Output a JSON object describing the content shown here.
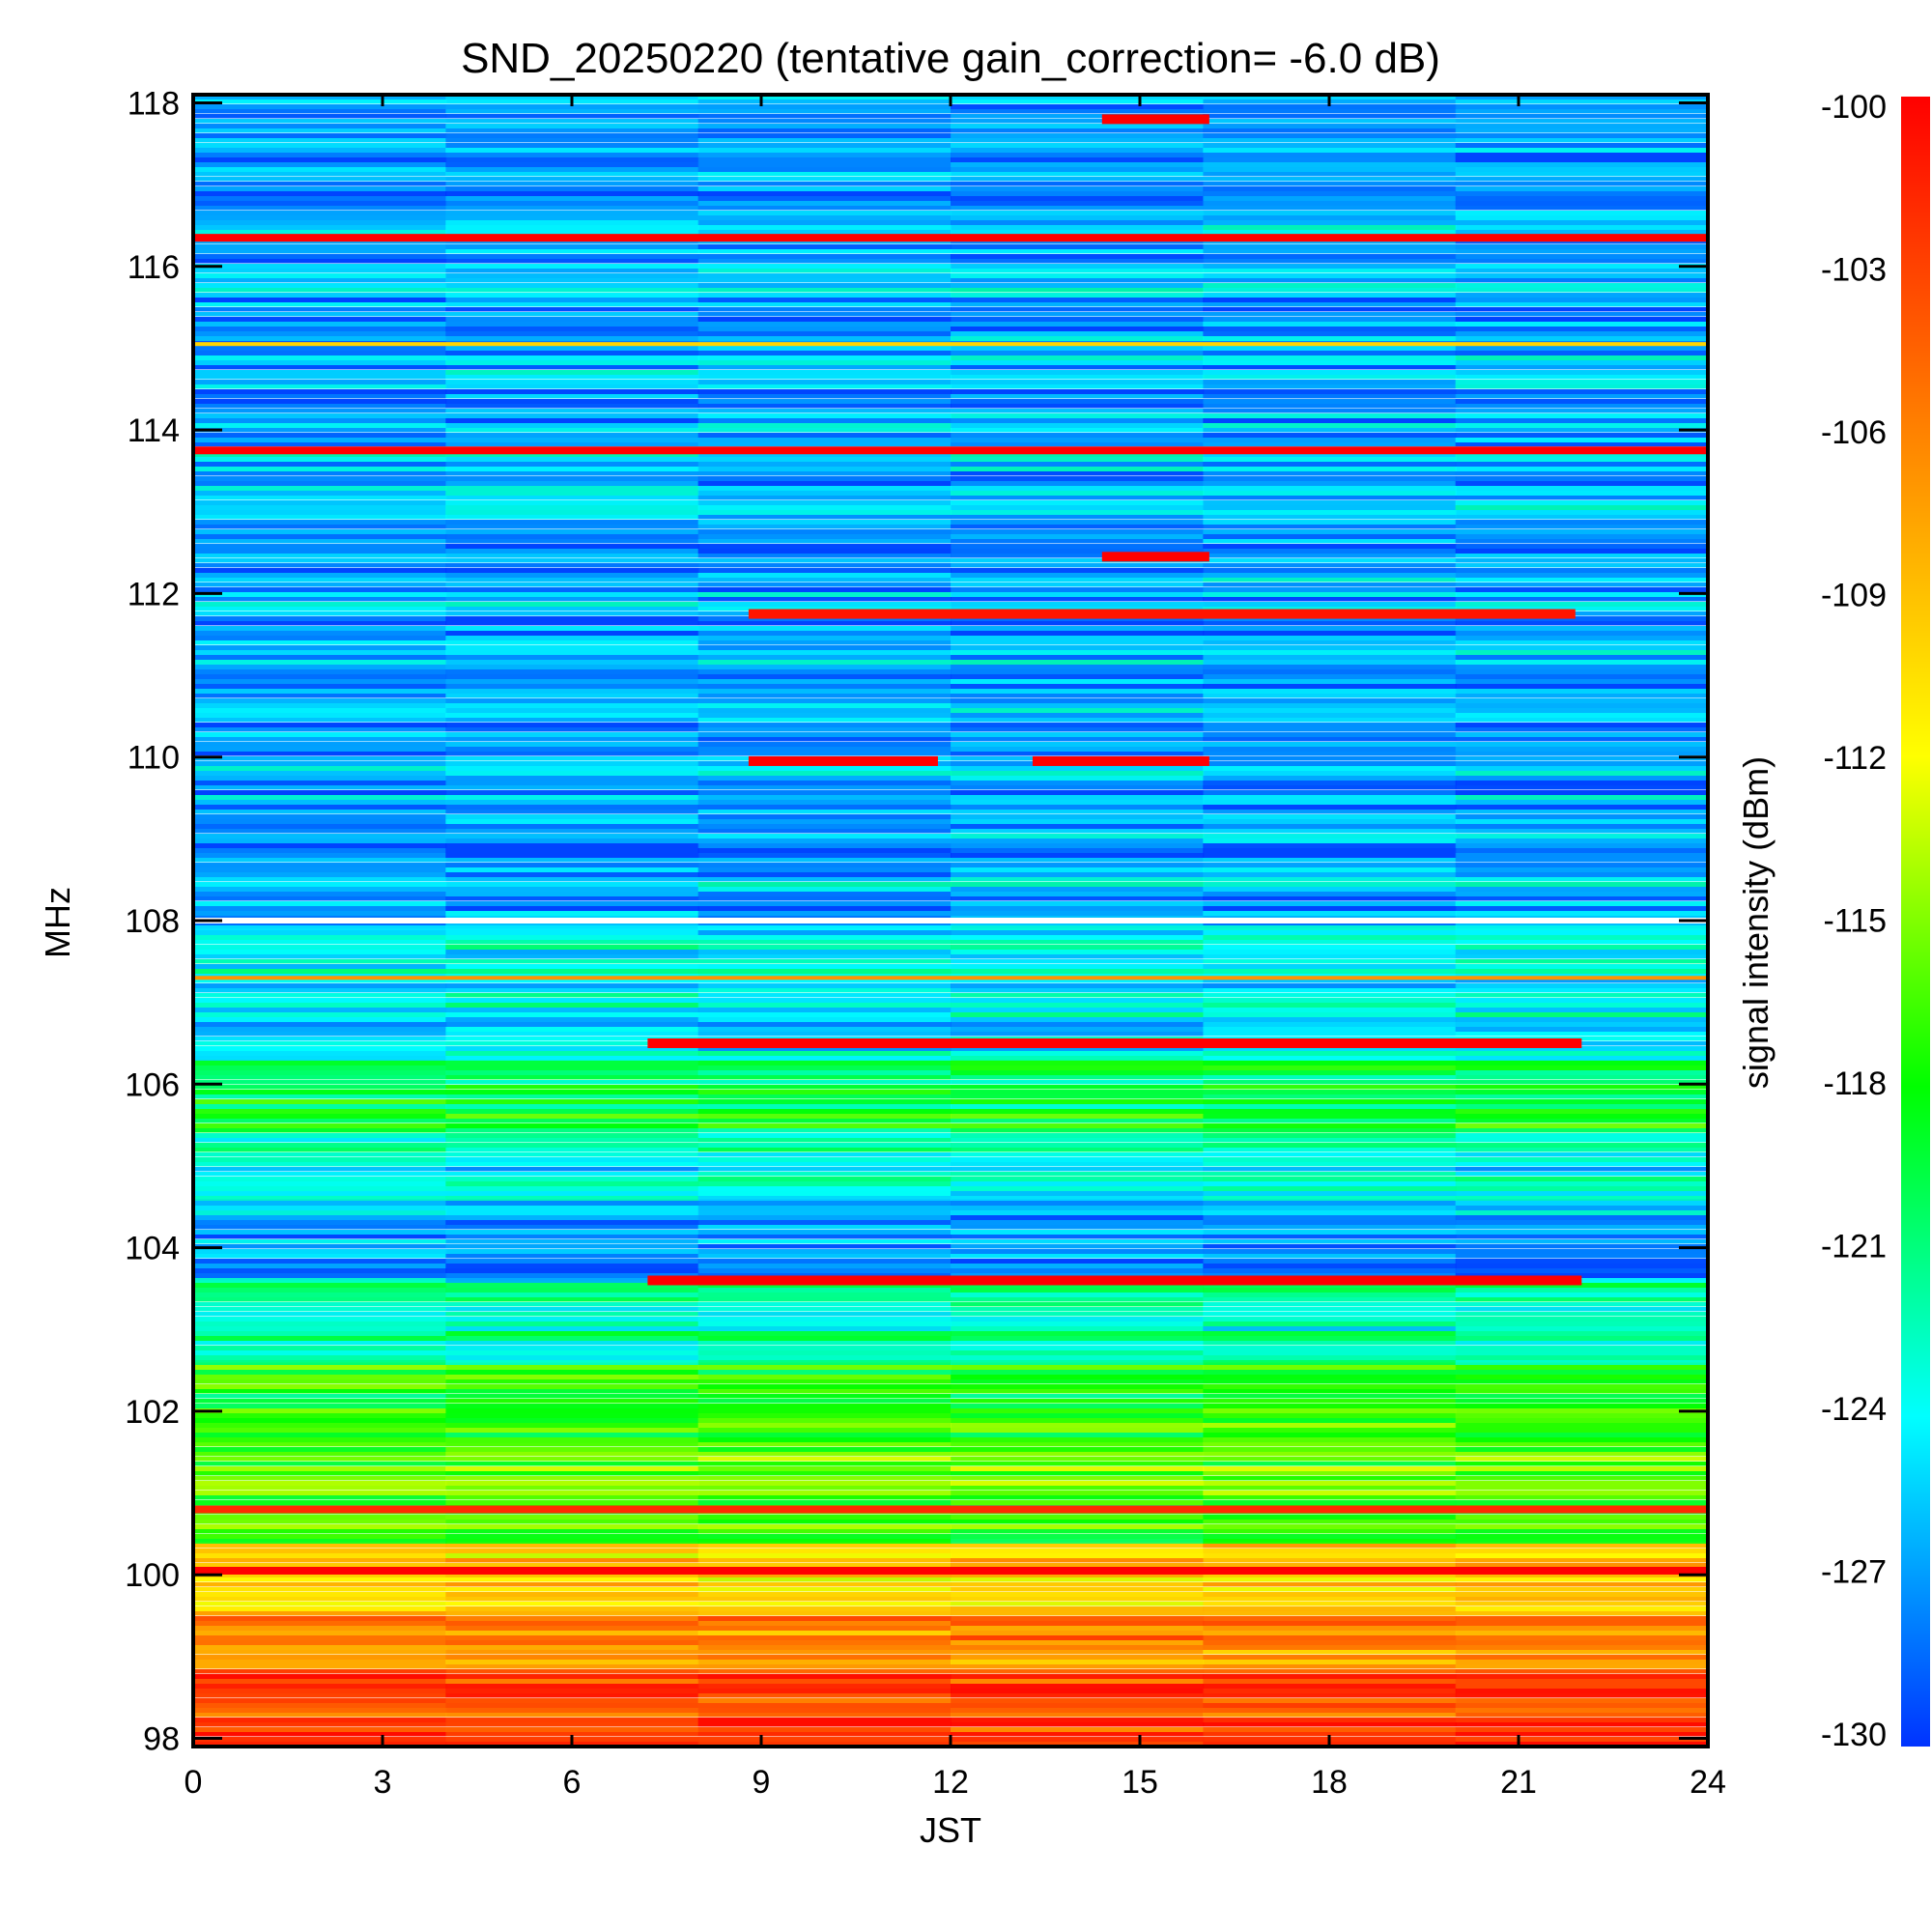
{
  "chart_data": {
    "type": "heatmap",
    "title": "SND_20250220 (tentative gain_correction= -6.0 dB)",
    "xlabel": "JST",
    "ylabel": "MHz",
    "colorbar_label": "signal intensity (dBm)",
    "xlim": [
      0,
      24
    ],
    "ylim": [
      97.9,
      118.1
    ],
    "x_ticks": [
      0,
      3,
      6,
      9,
      12,
      15,
      18,
      21,
      24
    ],
    "y_ticks": [
      98,
      100,
      102,
      104,
      106,
      108,
      110,
      112,
      114,
      116,
      118
    ],
    "color_range": [
      -130,
      -100
    ],
    "colorbar_ticks": [
      -100,
      -103,
      -106,
      -109,
      -112,
      -115,
      -118,
      -121,
      -124,
      -127,
      -130
    ],
    "colormap": [
      "#0033ff",
      "#00ffff",
      "#00ff00",
      "#ffff00",
      "#ff8000",
      "#ff0000"
    ],
    "background_bands": [
      {
        "from": 97.9,
        "to": 98.8,
        "value": -103.5
      },
      {
        "from": 98.8,
        "to": 99.5,
        "value": -106.5
      },
      {
        "from": 99.5,
        "to": 100.4,
        "value": -110.5
      },
      {
        "from": 100.4,
        "to": 101.6,
        "value": -116.5
      },
      {
        "from": 101.6,
        "to": 102.6,
        "value": -117.5
      },
      {
        "from": 102.6,
        "to": 103.6,
        "value": -122.0
      },
      {
        "from": 103.6,
        "to": 104.6,
        "value": -126.5
      },
      {
        "from": 104.6,
        "to": 105.4,
        "value": -123.5
      },
      {
        "from": 105.4,
        "to": 106.3,
        "value": -119.5
      },
      {
        "from": 106.3,
        "to": 107.9,
        "value": -124.5
      },
      {
        "from": 107.9,
        "to": 118.1,
        "value": -126.5
      }
    ],
    "strong_signals": [
      {
        "freq": 117.8,
        "start": 14.4,
        "end": 16.1,
        "value": -100
      },
      {
        "freq": 116.35,
        "start": 0,
        "end": 24,
        "value": -100
      },
      {
        "freq": 115.05,
        "start": 0,
        "end": 24,
        "value": -110
      },
      {
        "freq": 113.75,
        "start": 0,
        "end": 24,
        "value": -100
      },
      {
        "freq": 112.45,
        "start": 14.4,
        "end": 16.1,
        "value": -100
      },
      {
        "freq": 111.75,
        "start": 8.8,
        "end": 21.9,
        "value": -101
      },
      {
        "freq": 109.95,
        "start": 8.8,
        "end": 11.8,
        "value": -100
      },
      {
        "freq": 109.95,
        "start": 13.3,
        "end": 16.1,
        "value": -100
      },
      {
        "freq": 107.3,
        "start": 0,
        "end": 24,
        "value": -107
      },
      {
        "freq": 106.5,
        "start": 7.2,
        "end": 22.0,
        "value": -100
      },
      {
        "freq": 103.6,
        "start": 7.2,
        "end": 22.0,
        "value": -100
      },
      {
        "freq": 100.8,
        "start": 0,
        "end": 24,
        "value": -102
      },
      {
        "freq": 100.05,
        "start": 0,
        "end": 24,
        "value": -100
      }
    ]
  }
}
